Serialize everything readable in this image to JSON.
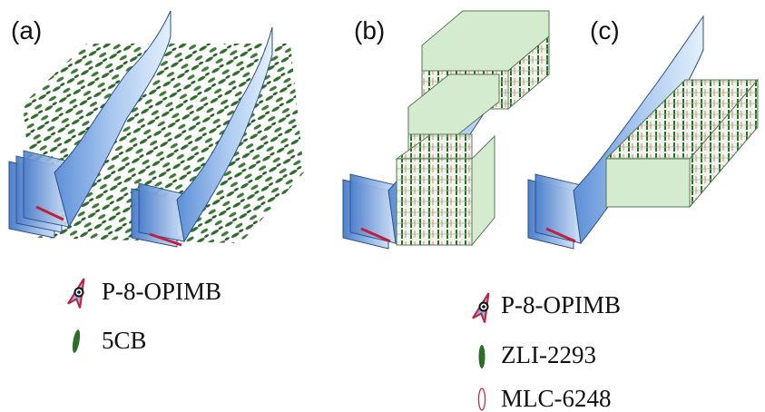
{
  "panels": [
    {
      "label": "(a)"
    },
    {
      "label": "(b)"
    },
    {
      "label": "(c)"
    }
  ],
  "legend_a": [
    {
      "text": "P-8-OPIMB",
      "icon": "bent-core-molecule-icon"
    },
    {
      "text": "5CB",
      "icon": "green-ellipse-molecule-icon"
    }
  ],
  "legend_bc": [
    {
      "text": "P-8-OPIMB",
      "icon": "bent-core-molecule-icon"
    },
    {
      "text": "ZLI-2293",
      "icon": "green-ellipse-molecule-icon"
    },
    {
      "text": "MLC-6248",
      "icon": "pink-ellipse-molecule-icon"
    }
  ],
  "colors": {
    "helix_blue": "#8fb4e6",
    "helix_light": "#d8e8fa",
    "nematic_green": "#2f6b2a",
    "layer_fill": "#d4ebcf",
    "layer_stroke": "#5a7a55",
    "pink_molecule": "#e8a0a8",
    "bent_core_red": "#c0203a"
  }
}
